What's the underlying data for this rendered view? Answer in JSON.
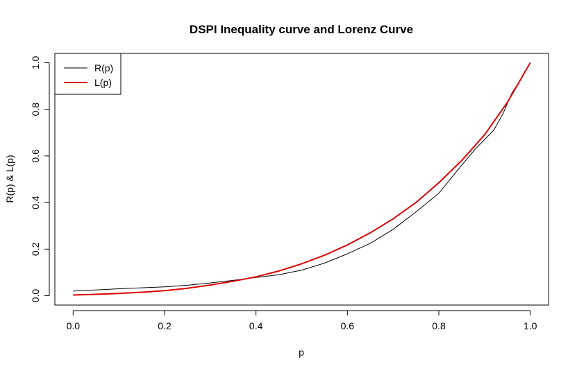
{
  "chart_data": {
    "type": "line",
    "title": "DSPI Inequality curve and Lorenz Curve",
    "xlabel": "p",
    "ylabel": "R(p) & L(p)",
    "xlim": [
      -0.04,
      1.04
    ],
    "ylim": [
      -0.04,
      1.04
    ],
    "x_ticks": [
      "0.0",
      "0.2",
      "0.4",
      "0.6",
      "0.8",
      "1.0"
    ],
    "y_ticks": [
      "0.0",
      "0.2",
      "0.4",
      "0.6",
      "0.8",
      "1.0"
    ],
    "grid": false,
    "legend_position": "top-left",
    "series": [
      {
        "name": "R(p)",
        "color": "#000000",
        "x": [
          0.0,
          0.05,
          0.1,
          0.15,
          0.2,
          0.25,
          0.3,
          0.35,
          0.4,
          0.45,
          0.5,
          0.55,
          0.6,
          0.65,
          0.7,
          0.75,
          0.8,
          0.85,
          0.88,
          0.9,
          0.92,
          0.94,
          0.96,
          0.98,
          1.0
        ],
        "y": [
          0.02,
          0.025,
          0.03,
          0.034,
          0.038,
          0.045,
          0.055,
          0.066,
          0.078,
          0.09,
          0.11,
          0.14,
          0.18,
          0.225,
          0.285,
          0.36,
          0.44,
          0.56,
          0.63,
          0.67,
          0.71,
          0.78,
          0.87,
          0.93,
          1.0
        ]
      },
      {
        "name": "L(p)",
        "color": "#dd0000",
        "x": [
          0.0,
          0.05,
          0.1,
          0.15,
          0.2,
          0.25,
          0.3,
          0.35,
          0.4,
          0.45,
          0.5,
          0.55,
          0.6,
          0.65,
          0.7,
          0.75,
          0.8,
          0.85,
          0.9,
          0.95,
          1.0
        ],
        "y": [
          0.003,
          0.006,
          0.01,
          0.015,
          0.022,
          0.032,
          0.046,
          0.062,
          0.081,
          0.106,
          0.137,
          0.174,
          0.218,
          0.27,
          0.33,
          0.4,
          0.485,
          0.58,
          0.69,
          0.83,
          1.0
        ]
      }
    ]
  }
}
